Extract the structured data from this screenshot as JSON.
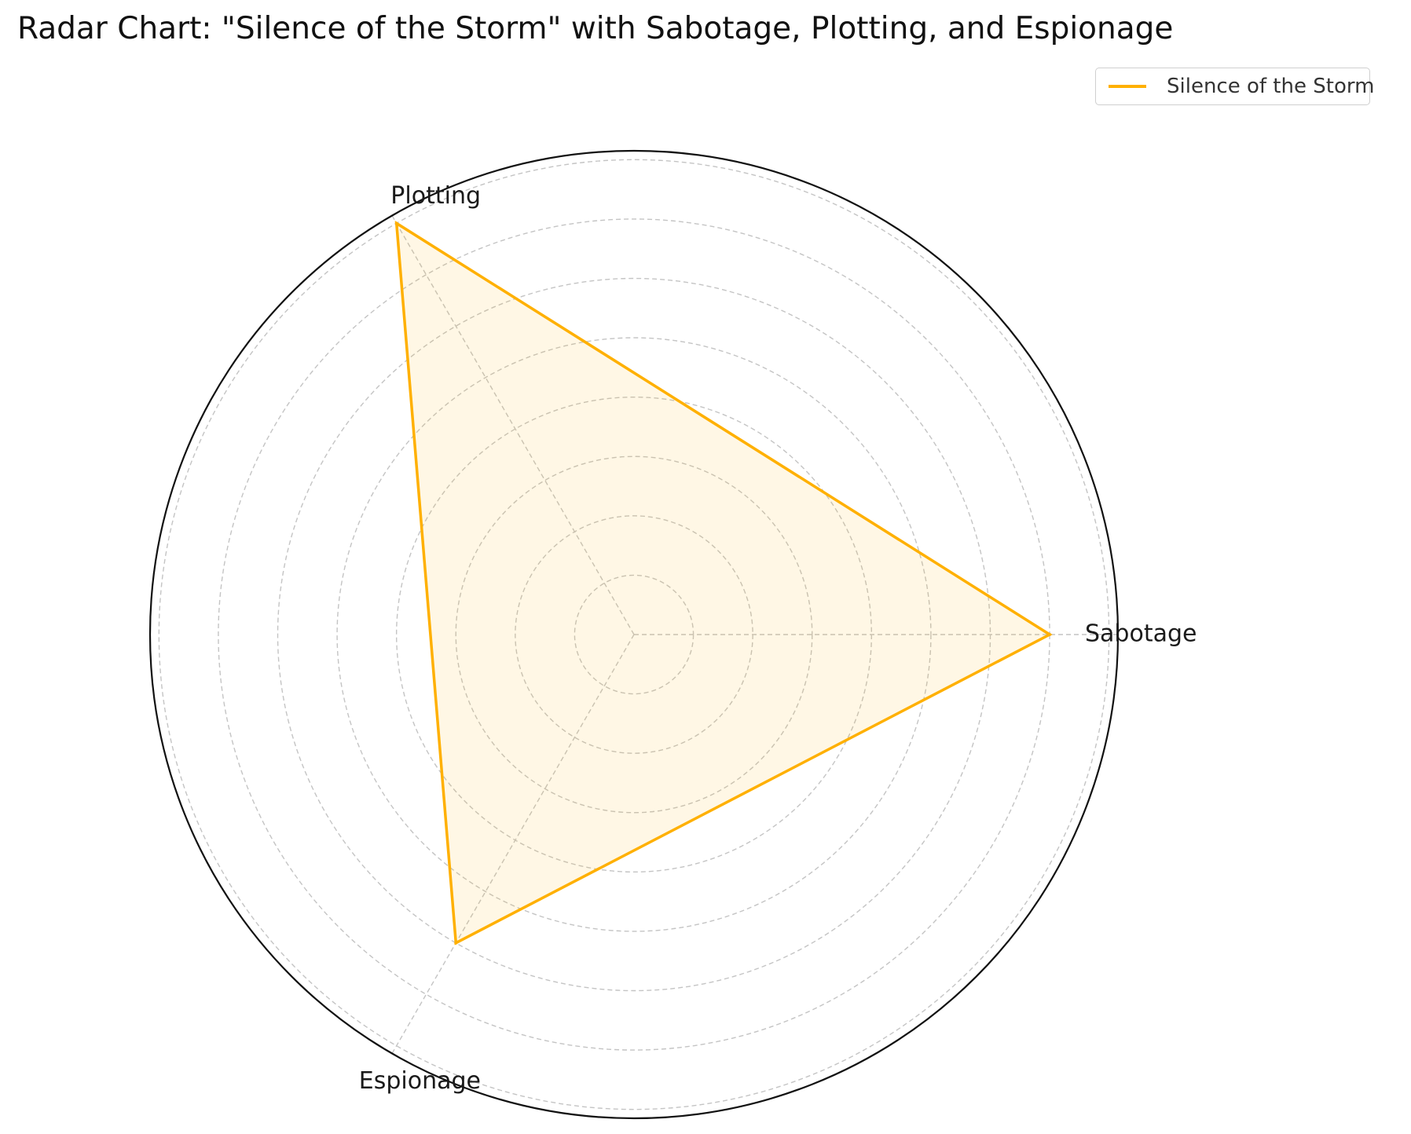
{
  "chart_data": {
    "type": "radar",
    "title": "Radar Chart: \"Silence of the Storm\" with Sabotage, Plotting, and Espionage",
    "categories": [
      "Sabotage",
      "Plotting",
      "Espionage"
    ],
    "series": [
      {
        "name": "Silence of the Storm",
        "values": [
          7.0,
          8.0,
          6.0
        ],
        "color": "#FFB000",
        "fill_color": "#FFB000",
        "fill_opacity": 0.1
      }
    ],
    "rlim": [
      0,
      8.15
    ],
    "grid": true,
    "grid_style": "dashed",
    "legend_placement": "top-right",
    "radial_tick_labels_shown": false
  }
}
